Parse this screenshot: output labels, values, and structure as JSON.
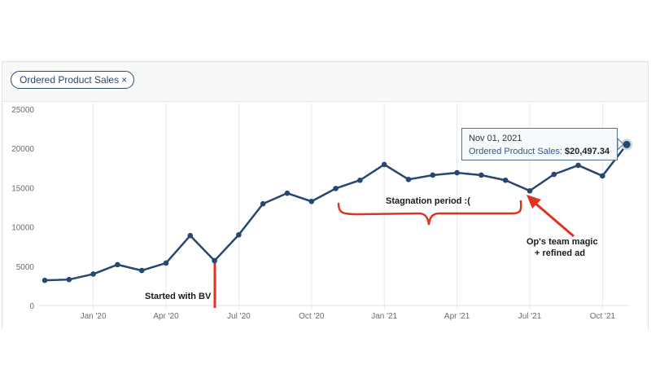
{
  "filter_chip": {
    "label": "Ordered Product Sales",
    "close_icon": "×"
  },
  "tooltip": {
    "date": "Nov 01, 2021",
    "series": "Ordered Product Sales:",
    "value": "$20,497.34"
  },
  "annotations": {
    "started": "Started with BV",
    "stagnation": "Stagnation period :(",
    "magic_line1": "Op's team magic",
    "magic_line2": "+ refined ad"
  },
  "colors": {
    "line": "#26476f",
    "annotation": "#e0321f",
    "grid": "#e6e9f0"
  },
  "chart_data": {
    "type": "line",
    "title": "",
    "xlabel": "",
    "ylabel": "",
    "ylim": [
      0,
      25000
    ],
    "yticks": [
      0,
      5000,
      10000,
      15000,
      20000,
      25000
    ],
    "xtick_labels": [
      "Jan '20",
      "Apr '20",
      "Jul '20",
      "Oct '20",
      "Jan '21",
      "Apr '21",
      "Jul '21",
      "Oct '21"
    ],
    "grid": true,
    "legend": [
      "Ordered Product Sales"
    ],
    "categories": [
      "Nov '19",
      "Dec '19",
      "Jan '20",
      "Feb '20",
      "Mar '20",
      "Apr '20",
      "May '20",
      "Jun '20",
      "Jul '20",
      "Aug '20",
      "Sep '20",
      "Oct '20",
      "Nov '20",
      "Dec '20",
      "Jan '21",
      "Feb '21",
      "Mar '21",
      "Apr '21",
      "May '21",
      "Jun '21",
      "Jul '21",
      "Aug '21",
      "Sep '21",
      "Oct '21",
      "Nov '21"
    ],
    "series": [
      {
        "name": "Ordered Product Sales",
        "values": [
          3200,
          3300,
          4000,
          5200,
          4450,
          5400,
          8900,
          5700,
          9000,
          12950,
          14300,
          13250,
          14900,
          15950,
          17950,
          16050,
          16600,
          16900,
          16600,
          15950,
          14600,
          16700,
          17850,
          16500,
          20497.34
        ]
      }
    ],
    "annotations": [
      {
        "text": "Started with BV",
        "x": "Jun '20"
      },
      {
        "text": "Stagnation period :(",
        "range": [
          "Nov '20",
          "Jun '21"
        ]
      },
      {
        "text": "Op's team magic + refined ad",
        "x": "Jul '21"
      }
    ]
  }
}
